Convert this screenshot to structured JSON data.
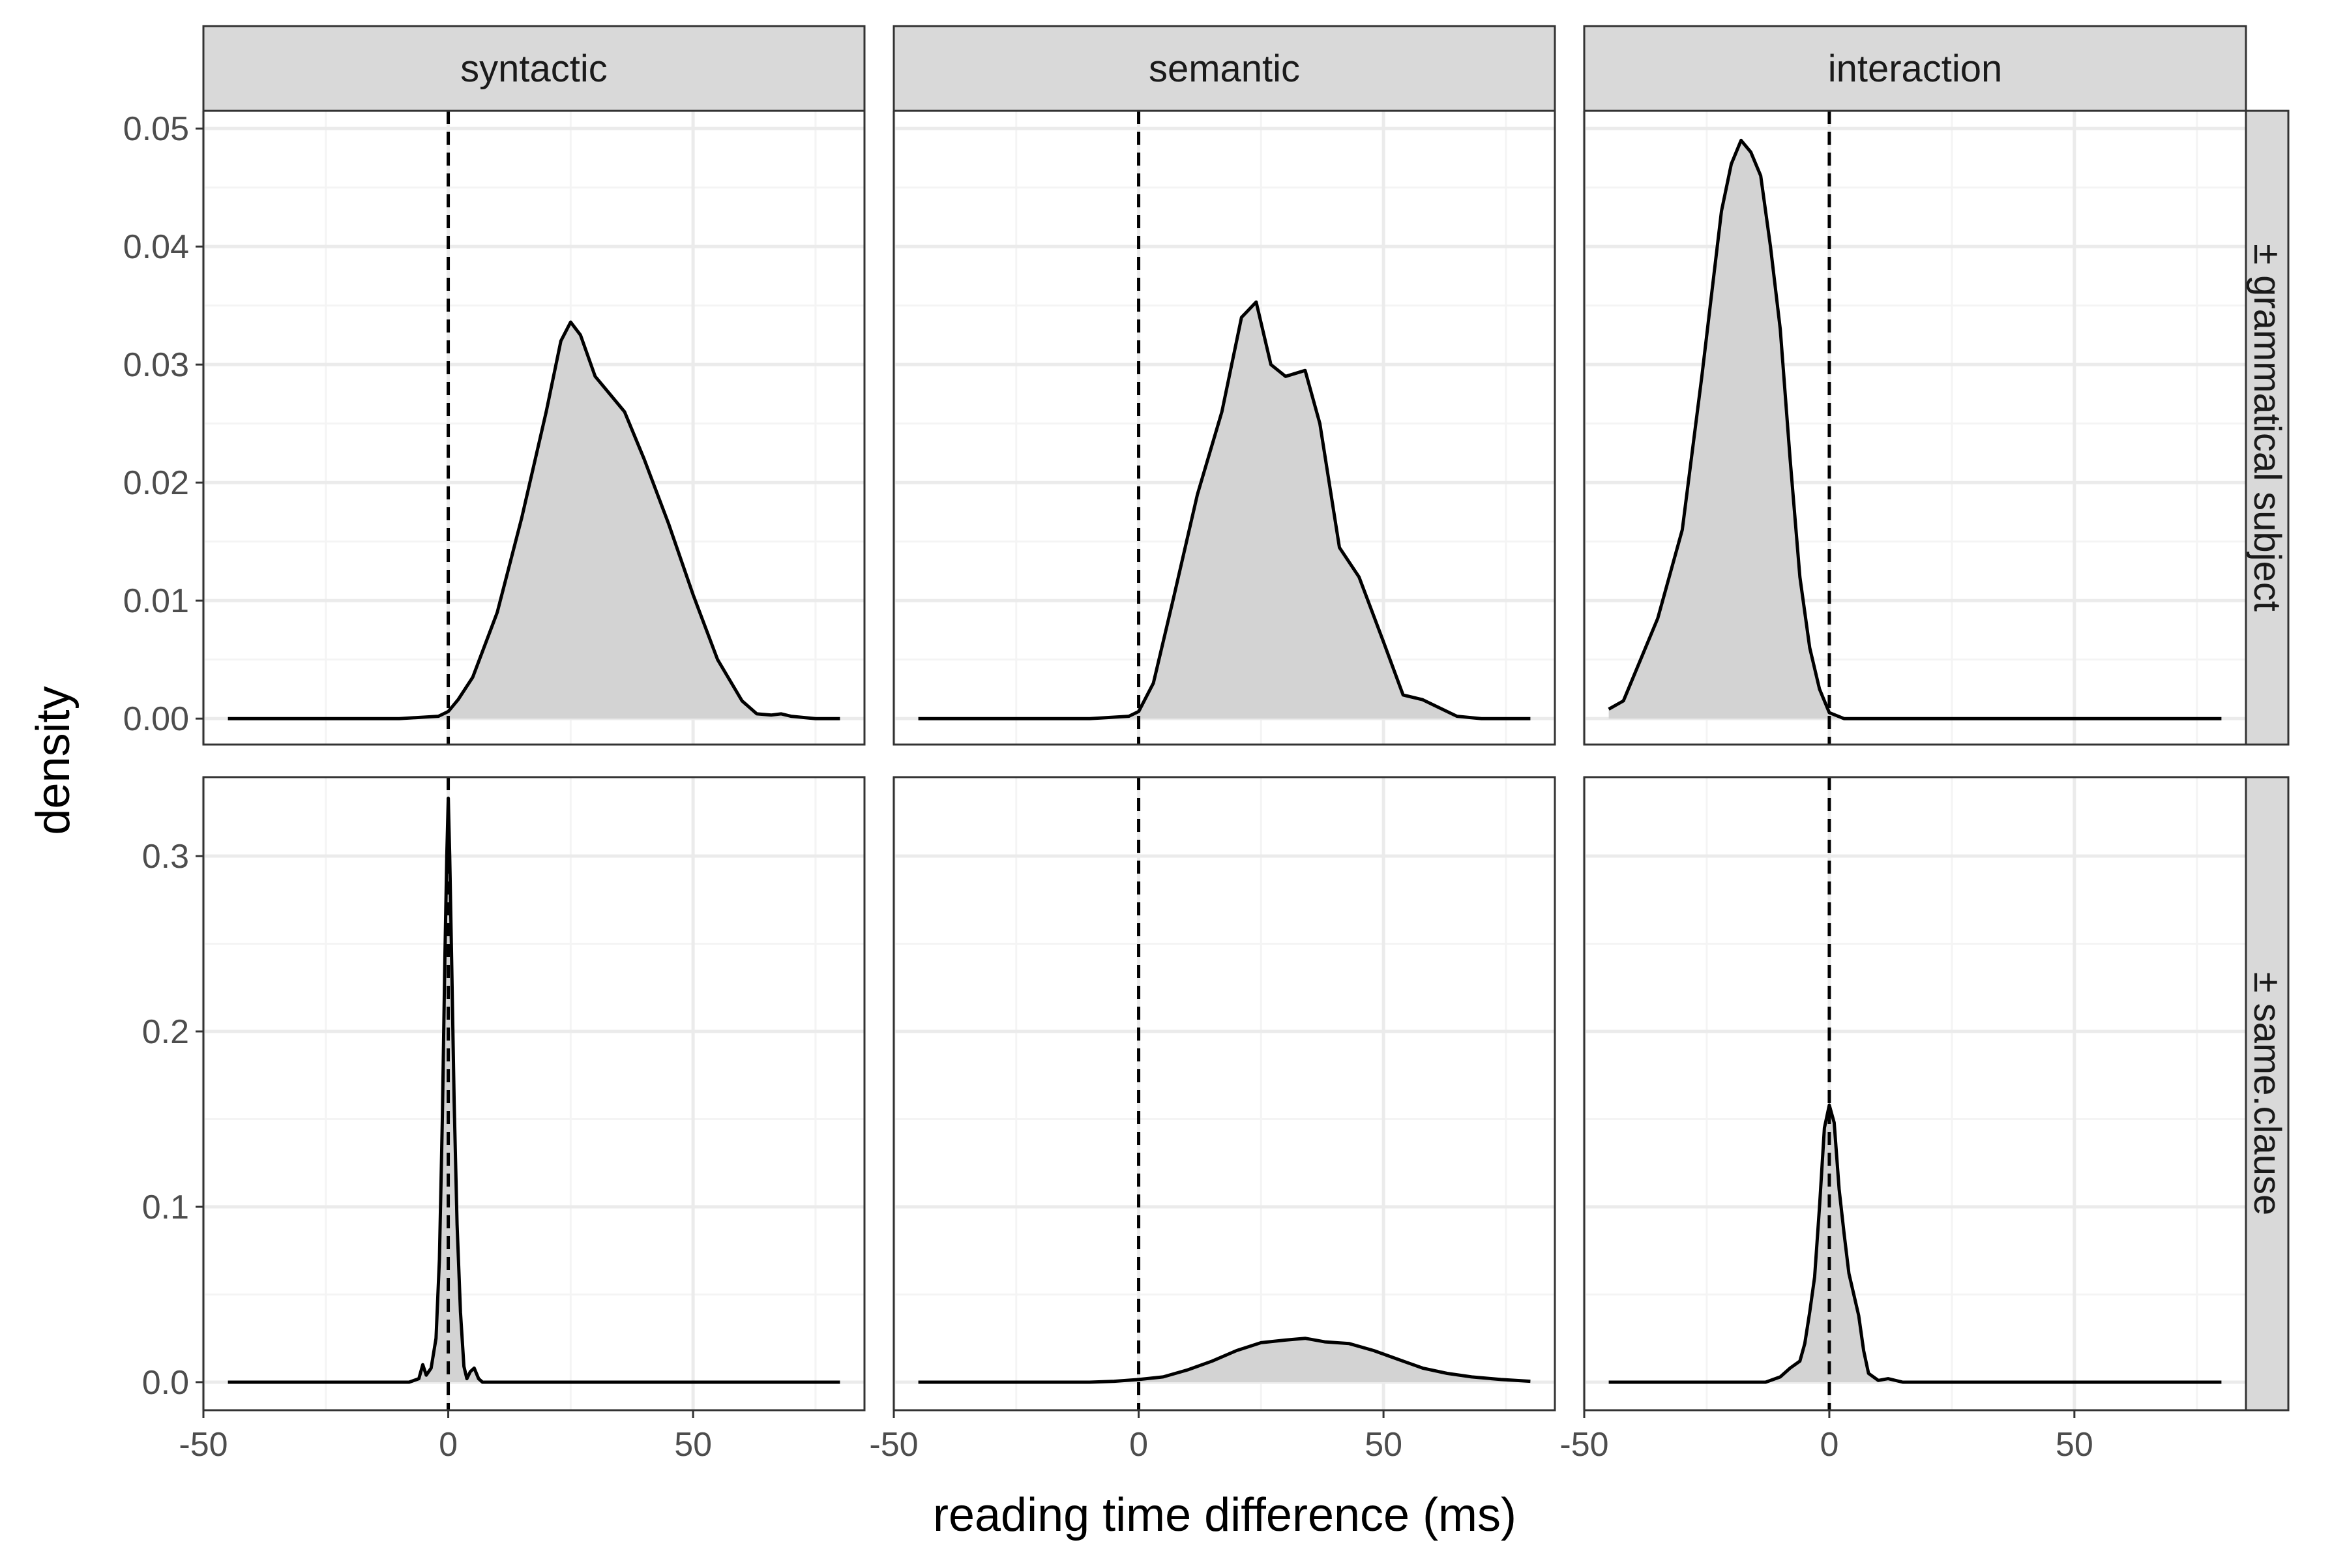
{
  "chart_data": {
    "type": "area",
    "xlabel": "reading time difference (ms)",
    "ylabel": "density",
    "columns": [
      "syntactic",
      "semantic",
      "interaction"
    ],
    "rows": [
      "± grammatical subject",
      "± same.clause"
    ],
    "x_ticks": [
      -50,
      0,
      50
    ],
    "xlim": [
      -50,
      85
    ],
    "reference_line_x": 0,
    "grid": true,
    "fill_color": "#d3d3d3",
    "line_color": "#000000",
    "strip_color": "#d9d9d9",
    "row_scales": [
      {
        "ylim": [
          -0.0022,
          0.0515
        ],
        "ticks": [
          0.0,
          0.01,
          0.02,
          0.03,
          0.04,
          0.05
        ],
        "tick_labels": [
          "0.00",
          "0.01",
          "0.02",
          "0.03",
          "0.04",
          "0.05"
        ]
      },
      {
        "ylim": [
          -0.016,
          0.345
        ],
        "ticks": [
          0.0,
          0.1,
          0.2,
          0.3
        ],
        "tick_labels": [
          "0.0",
          "0.1",
          "0.2",
          "0.3"
        ]
      }
    ],
    "panels": [
      {
        "row": 0,
        "col": 0,
        "column": "syntactic",
        "facet_row": "± grammatical subject",
        "x": [
          -45,
          -10,
          -2,
          0,
          2,
          5,
          10,
          15,
          20,
          23,
          25,
          27,
          30,
          33,
          36,
          40,
          45,
          50,
          55,
          60,
          63,
          66,
          68,
          70,
          75,
          80
        ],
        "y": [
          0,
          0,
          0.0002,
          0.0006,
          0.0016,
          0.0035,
          0.009,
          0.017,
          0.026,
          0.032,
          0.0336,
          0.0325,
          0.029,
          0.0275,
          0.026,
          0.022,
          0.0165,
          0.0105,
          0.005,
          0.0015,
          0.0004,
          0.0003,
          0.0004,
          0.0002,
          0,
          0
        ]
      },
      {
        "row": 0,
        "col": 1,
        "column": "semantic",
        "facet_row": "± grammatical subject",
        "x": [
          -45,
          -10,
          -2,
          0,
          3,
          7,
          12,
          17,
          21,
          24,
          27,
          30,
          34,
          37,
          41,
          45,
          50,
          54,
          58,
          61,
          65,
          70,
          80
        ],
        "y": [
          0,
          0,
          0.0002,
          0.0006,
          0.003,
          0.01,
          0.019,
          0.026,
          0.034,
          0.0353,
          0.03,
          0.029,
          0.0295,
          0.025,
          0.0145,
          0.012,
          0.0065,
          0.002,
          0.0016,
          0.001,
          0.0002,
          0,
          0
        ]
      },
      {
        "row": 0,
        "col": 2,
        "column": "interaction",
        "facet_row": "± grammatical subject",
        "x": [
          -45,
          -42,
          -39,
          -35,
          -30,
          -26,
          -22,
          -20,
          -18,
          -16,
          -14,
          -12,
          -10,
          -8,
          -6,
          -4,
          -2,
          0,
          3,
          10,
          20,
          80
        ],
        "y": [
          0.0008,
          0.0015,
          0.0045,
          0.0085,
          0.016,
          0.029,
          0.043,
          0.047,
          0.049,
          0.048,
          0.046,
          0.04,
          0.033,
          0.022,
          0.012,
          0.006,
          0.0025,
          0.0005,
          0,
          0,
          0,
          0
        ]
      },
      {
        "row": 1,
        "col": 0,
        "column": "syntactic",
        "facet_row": "± same.clause",
        "x": [
          -45,
          -8,
          -6,
          -5.2,
          -4.5,
          -3.5,
          -2.5,
          -1.8,
          -1.2,
          -0.7,
          -0.3,
          0,
          0.3,
          0.7,
          1.2,
          1.8,
          2.5,
          3.2,
          3.8,
          4.5,
          5.3,
          6.2,
          7,
          10,
          80
        ],
        "y": [
          0,
          0,
          0.002,
          0.01,
          0.004,
          0.008,
          0.025,
          0.07,
          0.15,
          0.24,
          0.3,
          0.333,
          0.3,
          0.24,
          0.16,
          0.09,
          0.04,
          0.009,
          0.002,
          0.006,
          0.008,
          0.002,
          0,
          0,
          0
        ]
      },
      {
        "row": 1,
        "col": 1,
        "column": "semantic",
        "facet_row": "± same.clause",
        "x": [
          -45,
          -10,
          -5,
          0,
          5,
          10,
          15,
          20,
          25,
          30,
          34,
          38,
          43,
          48,
          53,
          58,
          63,
          68,
          74,
          80
        ],
        "y": [
          0,
          0,
          0.0005,
          0.0015,
          0.003,
          0.007,
          0.012,
          0.018,
          0.0225,
          0.024,
          0.025,
          0.023,
          0.022,
          0.018,
          0.013,
          0.008,
          0.005,
          0.003,
          0.0015,
          0.0005
        ]
      },
      {
        "row": 1,
        "col": 2,
        "column": "interaction",
        "facet_row": "± same.clause",
        "x": [
          -45,
          -13,
          -10,
          -8,
          -6,
          -5,
          -4,
          -3,
          -2,
          -1,
          0,
          1,
          2,
          3,
          4,
          5,
          6,
          7,
          8,
          10,
          12,
          15,
          80
        ],
        "y": [
          0,
          0,
          0.003,
          0.008,
          0.012,
          0.022,
          0.04,
          0.06,
          0.1,
          0.145,
          0.158,
          0.148,
          0.11,
          0.085,
          0.062,
          0.05,
          0.038,
          0.018,
          0.005,
          0.001,
          0.002,
          0,
          0
        ]
      }
    ]
  }
}
